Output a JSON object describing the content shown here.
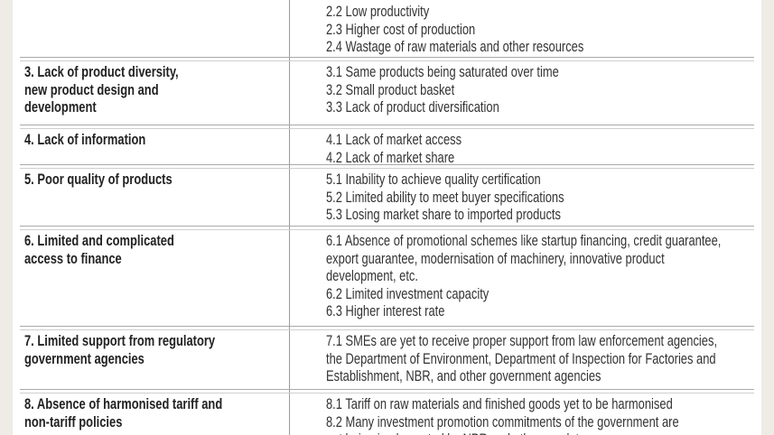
{
  "rows": [
    {
      "problem": [],
      "causes": [
        "2.2 Low productivity",
        "2.3 Higher cost of production",
        "2.4 Wastage of raw materials and other resources"
      ]
    },
    {
      "problem": [
        "3. Lack of product diversity,",
        "new product design and",
        "development"
      ],
      "causes": [
        "3.1 Same products being saturated over time",
        "3.2 Small product basket",
        "3.3 Lack of product diversification"
      ]
    },
    {
      "problem": [
        "4. Lack of information"
      ],
      "causes": [
        "4.1 Lack of market access",
        "4.2 Lack of market share"
      ]
    },
    {
      "problem": [
        "5. Poor quality of products"
      ],
      "causes": [
        "5.1 Inability to achieve quality certification",
        "5.2 Limited ability to meet buyer specifications",
        "5.3 Losing market share to imported products"
      ]
    },
    {
      "problem": [
        "6. Limited and complicated",
        "access to finance"
      ],
      "causes": [
        "6.1 Absence of promotional schemes like startup financing, credit guarantee,",
        "export guarantee, modernisation of machinery,  innovative product",
        "development, etc.",
        "6.2 Limited investment capacity",
        "6.3 Higher interest rate"
      ]
    },
    {
      "problem": [
        "7. Limited support from regulatory",
        "government agencies"
      ],
      "causes": [
        "7.1 SMEs are yet to receive proper support from law enforcement agencies,",
        "the Department of Environment, Department of Inspection for Factories and",
        "Establishment, NBR, and other government agencies"
      ]
    },
    {
      "problem": [
        "8. Absence of harmonised tariff and",
        "non-tariff policies"
      ],
      "causes": [
        "8.1 Tariff on raw materials and finished goods yet to be harmonised",
        "8.2 Many investment promotion commitments of the government are",
        "not being implemented by NBR and other regulators"
      ]
    }
  ]
}
